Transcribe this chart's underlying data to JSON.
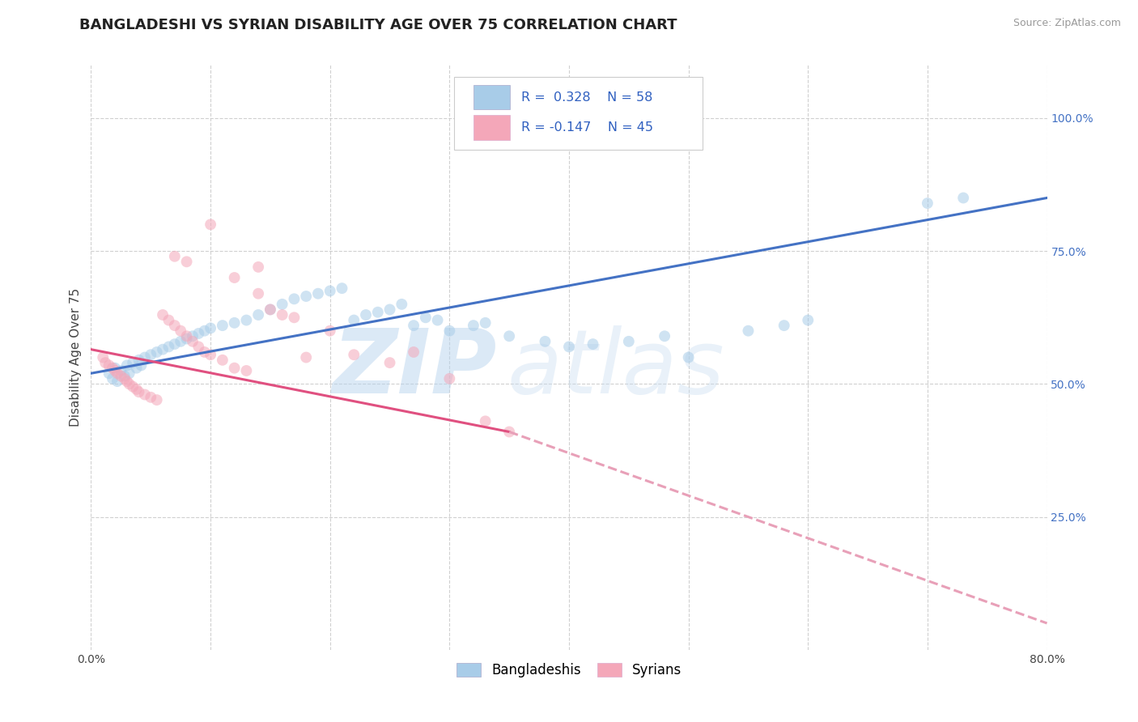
{
  "title": "BANGLADESHI VS SYRIAN DISABILITY AGE OVER 75 CORRELATION CHART",
  "source_text": "Source: ZipAtlas.com",
  "ylabel": "Disability Age Over 75",
  "xlim": [
    0.0,
    80.0
  ],
  "ylim": [
    0.0,
    110.0
  ],
  "x_ticks": [
    0.0,
    10.0,
    20.0,
    30.0,
    40.0,
    50.0,
    60.0,
    70.0,
    80.0
  ],
  "y_ticks_right": [
    25.0,
    50.0,
    75.0,
    100.0
  ],
  "blue_color": "#a8cce8",
  "blue_line_color": "#4472c4",
  "pink_color": "#f4a7b9",
  "pink_line_color": "#e05080",
  "pink_dashed_color": "#e8a0b8",
  "legend_R1": "R =  0.328",
  "legend_N1": "N = 58",
  "legend_R2": "R = -0.147",
  "legend_N2": "N = 45",
  "legend_label1": "Bangladeshis",
  "legend_label2": "Syrians",
  "watermark": "ZIPatlas",
  "blue_scatter_x": [
    1.5,
    1.8,
    2.0,
    2.2,
    2.5,
    2.8,
    3.0,
    3.2,
    3.5,
    3.8,
    4.0,
    4.2,
    4.5,
    5.0,
    5.5,
    6.0,
    6.5,
    7.0,
    7.5,
    8.0,
    8.5,
    9.0,
    9.5,
    10.0,
    11.0,
    12.0,
    13.0,
    14.0,
    15.0,
    16.0,
    17.0,
    18.0,
    19.0,
    20.0,
    21.0,
    22.0,
    23.0,
    24.0,
    25.0,
    26.0,
    27.0,
    28.0,
    29.0,
    30.0,
    32.0,
    33.0,
    35.0,
    38.0,
    40.0,
    42.0,
    45.0,
    48.0,
    50.0,
    55.0,
    58.0,
    60.0,
    70.0,
    73.0
  ],
  "blue_scatter_y": [
    52.0,
    51.0,
    53.0,
    50.5,
    52.5,
    51.5,
    53.5,
    52.0,
    54.0,
    53.0,
    54.5,
    53.5,
    55.0,
    55.5,
    56.0,
    56.5,
    57.0,
    57.5,
    58.0,
    58.5,
    59.0,
    59.5,
    60.0,
    60.5,
    61.0,
    61.5,
    62.0,
    63.0,
    64.0,
    65.0,
    66.0,
    66.5,
    67.0,
    67.5,
    68.0,
    62.0,
    63.0,
    63.5,
    64.0,
    65.0,
    61.0,
    62.5,
    62.0,
    60.0,
    61.0,
    61.5,
    59.0,
    58.0,
    57.0,
    57.5,
    58.0,
    59.0,
    55.0,
    60.0,
    61.0,
    62.0,
    84.0,
    85.0
  ],
  "pink_scatter_x": [
    1.0,
    1.2,
    1.5,
    1.8,
    2.0,
    2.2,
    2.5,
    2.8,
    3.0,
    3.2,
    3.5,
    3.8,
    4.0,
    4.5,
    5.0,
    5.5,
    6.0,
    6.5,
    7.0,
    7.5,
    8.0,
    8.5,
    9.0,
    9.5,
    10.0,
    11.0,
    12.0,
    13.0,
    14.0,
    15.0,
    16.0,
    17.0,
    18.0,
    20.0,
    22.0,
    25.0,
    27.0,
    30.0,
    33.0,
    35.0,
    7.0,
    8.0,
    10.0,
    12.0,
    14.0
  ],
  "pink_scatter_y": [
    55.0,
    54.0,
    53.5,
    53.0,
    52.5,
    52.0,
    51.5,
    51.0,
    50.5,
    50.0,
    49.5,
    49.0,
    48.5,
    48.0,
    47.5,
    47.0,
    63.0,
    62.0,
    61.0,
    60.0,
    59.0,
    58.0,
    57.0,
    56.0,
    55.5,
    54.5,
    53.0,
    52.5,
    67.0,
    64.0,
    63.0,
    62.5,
    55.0,
    60.0,
    55.5,
    54.0,
    56.0,
    51.0,
    43.0,
    41.0,
    74.0,
    73.0,
    80.0,
    70.0,
    72.0
  ],
  "blue_line_x0": 0.0,
  "blue_line_x1": 80.0,
  "blue_line_y0": 52.0,
  "blue_line_y1": 85.0,
  "pink_line_x0": 0.0,
  "pink_line_x1": 35.0,
  "pink_line_y0": 56.5,
  "pink_line_y1": 41.0,
  "pink_dashed_x0": 35.0,
  "pink_dashed_x1": 80.0,
  "pink_dashed_y0": 41.0,
  "pink_dashed_y1": 5.0,
  "background_color": "#ffffff",
  "grid_color": "#d0d0d0",
  "title_fontsize": 13,
  "axis_label_fontsize": 11,
  "tick_fontsize": 10,
  "scatter_size": 100,
  "scatter_alpha": 0.55,
  "line_width": 2.2
}
